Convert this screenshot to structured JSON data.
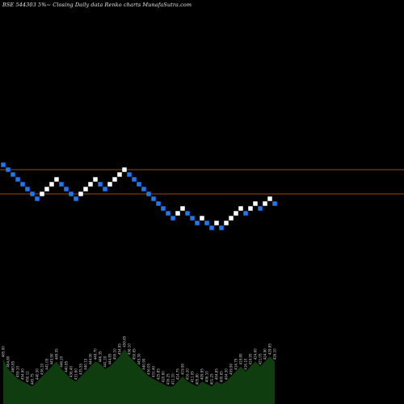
{
  "chart_data": {
    "type": "renko",
    "title": "BSE 544303 5%~ Closing Daily data Renko charts MunafaSutra.com",
    "brick_size": 5,
    "colors": {
      "background": "#000000",
      "up_brick": "#ffffff",
      "down_brick": "#1e78f0",
      "reference_line": "#c86414",
      "volume_area": "#0f3d0f",
      "volume_label": "#cfcfcf"
    },
    "reference_lines": [
      460,
      435
    ],
    "bricks": [
      {
        "dir": "down",
        "close": 465
      },
      {
        "dir": "down",
        "close": 460
      },
      {
        "dir": "down",
        "close": 455
      },
      {
        "dir": "down",
        "close": 450
      },
      {
        "dir": "down",
        "close": 445
      },
      {
        "dir": "down",
        "close": 440
      },
      {
        "dir": "down",
        "close": 435
      },
      {
        "dir": "down",
        "close": 430
      },
      {
        "dir": "up",
        "close": 435
      },
      {
        "dir": "up",
        "close": 440
      },
      {
        "dir": "up",
        "close": 445
      },
      {
        "dir": "up",
        "close": 450
      },
      {
        "dir": "down",
        "close": 445
      },
      {
        "dir": "down",
        "close": 440
      },
      {
        "dir": "down",
        "close": 435
      },
      {
        "dir": "down",
        "close": 430
      },
      {
        "dir": "up",
        "close": 435
      },
      {
        "dir": "up",
        "close": 440
      },
      {
        "dir": "up",
        "close": 445
      },
      {
        "dir": "up",
        "close": 450
      },
      {
        "dir": "down",
        "close": 445
      },
      {
        "dir": "down",
        "close": 440
      },
      {
        "dir": "up",
        "close": 445
      },
      {
        "dir": "up",
        "close": 450
      },
      {
        "dir": "up",
        "close": 455
      },
      {
        "dir": "up",
        "close": 460
      },
      {
        "dir": "down",
        "close": 455
      },
      {
        "dir": "down",
        "close": 450
      },
      {
        "dir": "down",
        "close": 445
      },
      {
        "dir": "down",
        "close": 440
      },
      {
        "dir": "down",
        "close": 435
      },
      {
        "dir": "down",
        "close": 430
      },
      {
        "dir": "down",
        "close": 425
      },
      {
        "dir": "down",
        "close": 420
      },
      {
        "dir": "down",
        "close": 415
      },
      {
        "dir": "down",
        "close": 410
      },
      {
        "dir": "up",
        "close": 415
      },
      {
        "dir": "up",
        "close": 420
      },
      {
        "dir": "down",
        "close": 415
      },
      {
        "dir": "down",
        "close": 410
      },
      {
        "dir": "down",
        "close": 405
      },
      {
        "dir": "up",
        "close": 410
      },
      {
        "dir": "down",
        "close": 405
      },
      {
        "dir": "down",
        "close": 400
      },
      {
        "dir": "up",
        "close": 405
      },
      {
        "dir": "down",
        "close": 400
      },
      {
        "dir": "up",
        "close": 405
      },
      {
        "dir": "up",
        "close": 410
      },
      {
        "dir": "up",
        "close": 415
      },
      {
        "dir": "up",
        "close": 420
      },
      {
        "dir": "down",
        "close": 415
      },
      {
        "dir": "up",
        "close": 420
      },
      {
        "dir": "up",
        "close": 425
      },
      {
        "dir": "down",
        "close": 420
      },
      {
        "dir": "up",
        "close": 425
      },
      {
        "dir": "up",
        "close": 430
      },
      {
        "dir": "down",
        "close": 425
      }
    ],
    "volume": [
      18,
      14,
      12,
      10,
      9,
      8,
      7,
      9,
      11,
      13,
      15,
      17,
      14,
      12,
      10,
      9,
      11,
      13,
      15,
      17,
      16,
      14,
      15,
      17,
      19,
      22,
      19,
      17,
      15,
      13,
      11,
      10,
      9,
      8,
      7,
      7,
      9,
      11,
      9,
      8,
      7,
      9,
      8,
      7,
      9,
      8,
      9,
      11,
      13,
      15,
      13,
      15,
      17,
      15,
      17,
      19,
      17
    ],
    "volume_labels": [
      "465.00",
      "464.80",
      "460.85",
      "459.10",
      "454.90",
      "450.12",
      "445.75",
      "440.30",
      "436.10",
      "441.05",
      "445.90",
      "449.55",
      "446.20",
      "440.85",
      "436.40",
      "431.60",
      "435.55",
      "440.15",
      "444.90",
      "449.70",
      "446.35",
      "441.20",
      "444.85",
      "450.10",
      "454.95",
      "459.85",
      "456.10",
      "450.65",
      "445.30",
      "440.90",
      "436.05",
      "431.40",
      "425.85",
      "420.60",
      "416.25",
      "411.10",
      "414.75",
      "419.90",
      "416.20",
      "411.05",
      "405.80",
      "409.95",
      "406.10",
      "401.25",
      "404.85",
      "400.65",
      "404.30",
      "409.90",
      "414.75",
      "419.80",
      "416.10",
      "419.95",
      "424.60",
      "421.05",
      "424.90",
      "429.85",
      "426.10"
    ]
  }
}
